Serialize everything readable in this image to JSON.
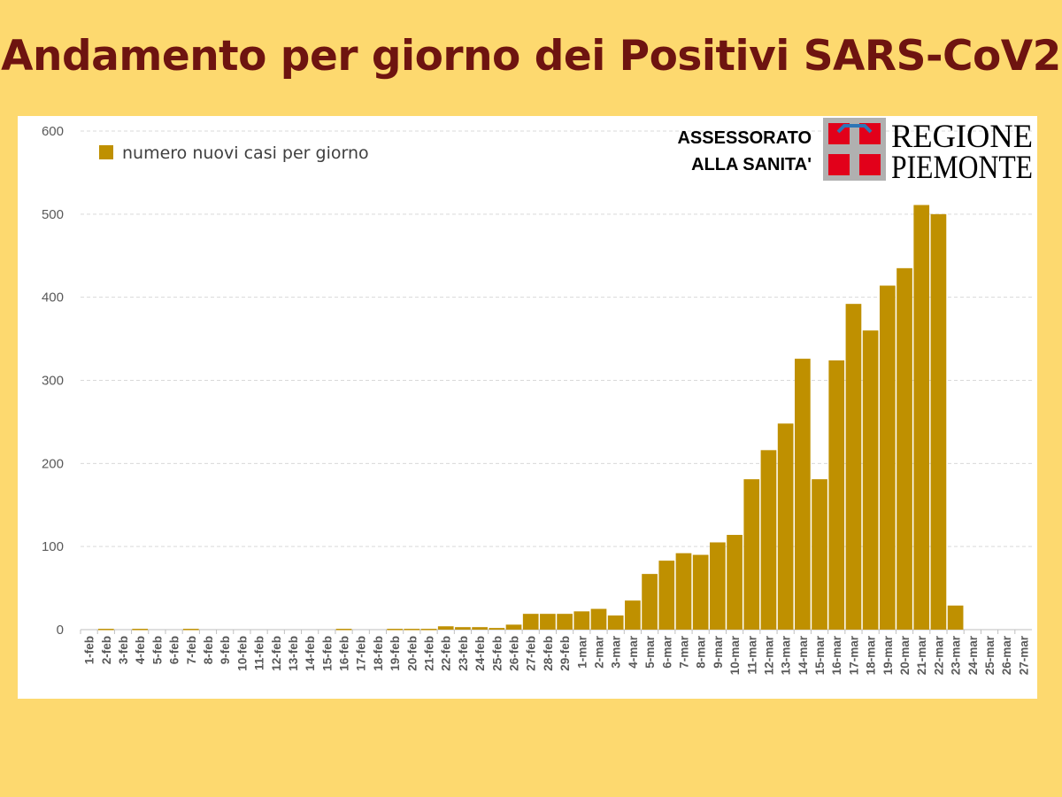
{
  "slide": {
    "title": "Andamento per giorno dei Positivi SARS-CoV2"
  },
  "logo": {
    "caption_line1": "ASSESSORATO",
    "caption_line2": "ALLA SANITA'",
    "name_line1": "REGIONE",
    "name_line2": "PIEMONTE",
    "colors": {
      "red": "#E2001A",
      "cross": "#B0B0B0",
      "blue": "#2E75B6"
    }
  },
  "colors": {
    "background": "#FDD96F",
    "title": "#6E1410",
    "bar": "#BF9000",
    "grid": "#D9D9D9",
    "axis_text": "#595959"
  },
  "chart_data": {
    "type": "bar",
    "legend": "numero nuovi casi per giorno",
    "legend_position": "top-left",
    "grid": true,
    "ylim": [
      0,
      600
    ],
    "yticks": [
      0,
      100,
      200,
      300,
      400,
      500,
      600
    ],
    "xlabel": "",
    "ylabel": "",
    "categories": [
      "1-feb",
      "2-feb",
      "3-feb",
      "4-feb",
      "5-feb",
      "6-feb",
      "7-feb",
      "8-feb",
      "9-feb",
      "10-feb",
      "11-feb",
      "12-feb",
      "13-feb",
      "14-feb",
      "15-feb",
      "16-feb",
      "17-feb",
      "18-feb",
      "19-feb",
      "20-feb",
      "21-feb",
      "22-feb",
      "23-feb",
      "24-feb",
      "25-feb",
      "26-feb",
      "27-feb",
      "28-feb",
      "29-feb",
      "1-mar",
      "2-mar",
      "3-mar",
      "4-mar",
      "5-mar",
      "6-mar",
      "7-mar",
      "8-mar",
      "9-mar",
      "10-mar",
      "11-mar",
      "12-mar",
      "13-mar",
      "14-mar",
      "15-mar",
      "16-mar",
      "17-mar",
      "18-mar",
      "19-mar",
      "20-mar",
      "21-mar",
      "22-mar",
      "23-mar",
      "24-mar",
      "25-mar",
      "26-mar",
      "27-mar"
    ],
    "values": [
      0,
      1,
      0,
      1,
      0,
      0,
      1,
      0,
      0,
      0,
      0,
      0,
      0,
      0,
      0,
      1,
      0,
      0,
      1,
      1,
      1,
      4,
      3,
      3,
      2,
      6,
      19,
      19,
      19,
      22,
      25,
      17,
      35,
      67,
      83,
      92,
      90,
      105,
      114,
      181,
      216,
      248,
      326,
      181,
      324,
      392,
      360,
      414,
      435,
      511,
      500,
      29,
      0,
      0,
      0,
      0
    ]
  }
}
